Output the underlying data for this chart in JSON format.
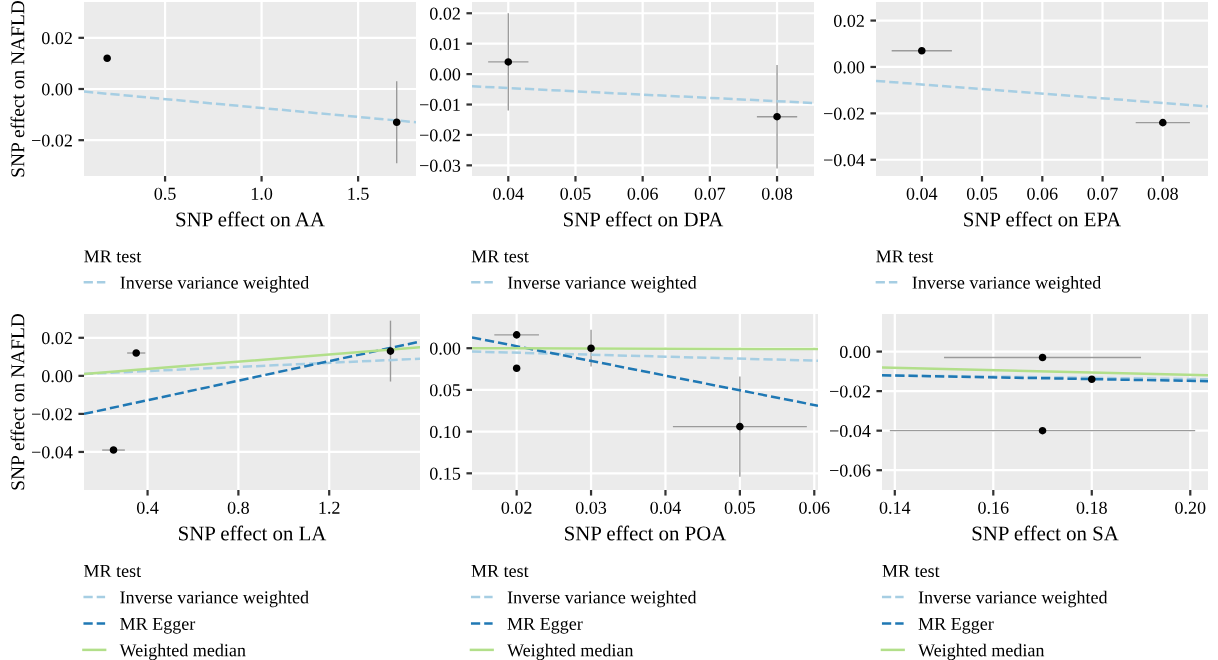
{
  "chart_data": [
    {
      "type": "scatter",
      "xlabel": "SNP effect on AA",
      "ylabel": "SNP effect on NAFLD",
      "xlim": [
        0.08,
        1.8
      ],
      "ylim": [
        -0.034,
        0.034
      ],
      "xticks": [
        0.5,
        {
          "value": 1.0,
          "label": "1.0"
        },
        1.5
      ],
      "yticks": [
        0.02,
        {
          "value": 0.0,
          "label": "0.00"
        },
        -0.02
      ],
      "grid": true,
      "legend": "bottom",
      "legend_title": "MR test",
      "series": [
        {
          "type": "scatter",
          "color": "#000000",
          "x": [
            0.2,
            1.7
          ],
          "values": [
            0.012,
            -0.013
          ],
          "errors": [
            null,
            0.016
          ]
        },
        {
          "type": "line",
          "name": "Inverse variance weighted",
          "color": "#a6cee3",
          "line_style": "dashed",
          "x": [
            0.08,
            1.8
          ],
          "values": [
            -0.001,
            -0.013
          ]
        }
      ]
    },
    {
      "type": "scatter",
      "xlabel": "SNP effect on DPA",
      "xlim": [
        0.0346,
        0.0855
      ],
      "ylim": [
        -0.0335,
        0.0237
      ],
      "xticks": [
        0.04,
        0.05,
        0.06,
        0.07,
        0.08
      ],
      "yticks": [
        0.02,
        0.01,
        {
          "value": 0.0,
          "label": "0.00"
        },
        -0.01,
        -0.02,
        -0.03
      ],
      "grid": true,
      "legend": "bottom",
      "legend_title": "MR test",
      "series": [
        {
          "type": "scatter",
          "color": "#000000",
          "x": [
            0.04,
            0.08
          ],
          "values": [
            0.004,
            -0.014
          ],
          "errors": [
            0.016,
            0.017
          ],
          "xerrors": [
            0.003,
            0.003
          ]
        },
        {
          "type": "line",
          "name": "Inverse variance weighted",
          "color": "#a6cee3",
          "line_style": "dashed",
          "x": [
            0.0346,
            0.0855
          ],
          "values": [
            -0.004,
            -0.0095
          ]
        }
      ]
    },
    {
      "type": "scatter",
      "xlabel": "SNP effect on EPA",
      "xlim": [
        0.0324,
        0.0875
      ],
      "ylim": [
        -0.047,
        0.028
      ],
      "xticks": [
        0.04,
        0.05,
        0.06,
        0.07,
        0.08
      ],
      "yticks": [
        0.02,
        {
          "value": 0.0,
          "label": "0.00"
        },
        -0.02,
        -0.04
      ],
      "grid": true,
      "legend": "bottom",
      "legend_title": "MR test",
      "series": [
        {
          "type": "scatter",
          "color": "#000000",
          "x": [
            0.04,
            0.08
          ],
          "values": [
            0.007,
            -0.024
          ],
          "xerrors": [
            0.005,
            0.0045
          ]
        },
        {
          "type": "line",
          "name": "Inverse variance weighted",
          "color": "#a6cee3",
          "line_style": "dashed",
          "x": [
            0.0324,
            0.0875
          ],
          "values": [
            -0.006,
            -0.017
          ]
        }
      ]
    },
    {
      "type": "scatter",
      "xlabel": "SNP effect on LA",
      "ylabel": "SNP effect on NAFLD",
      "xlim": [
        0.12,
        1.6
      ],
      "ylim": [
        -0.06,
        0.0325
      ],
      "xticks": [
        0.4,
        0.8,
        1.2
      ],
      "yticks": [
        0.02,
        {
          "value": 0.0,
          "label": "0.00"
        },
        -0.02,
        -0.04
      ],
      "grid": true,
      "legend": "bottom",
      "legend_title": "MR test",
      "series": [
        {
          "type": "scatter",
          "color": "#000000",
          "x": [
            0.35,
            0.25,
            1.47
          ],
          "values": [
            0.012,
            -0.039,
            0.013
          ],
          "errors": [
            null,
            null,
            0.016
          ],
          "xerrors": [
            0.04,
            0.05,
            null
          ]
        },
        {
          "type": "line",
          "name": "Inverse variance weighted",
          "color": "#a6cee3",
          "line_style": "dashed",
          "x": [
            0.12,
            1.6
          ],
          "values": [
            0.001,
            0.009
          ]
        },
        {
          "type": "line",
          "name": "MR Egger",
          "color": "#1f78b4",
          "line_style": "dashed",
          "x": [
            0.12,
            1.6
          ],
          "values": [
            -0.02,
            0.018
          ]
        },
        {
          "type": "line",
          "name": "Weighted median",
          "color": "#b2df8a",
          "line_style": "solid",
          "x": [
            0.12,
            1.6
          ],
          "values": [
            0.001,
            0.015
          ]
        }
      ]
    },
    {
      "type": "scatter",
      "xlabel": "SNP effect on POA",
      "xlim": [
        0.014,
        0.0605
      ],
      "ylim": [
        -0.17,
        0.041
      ],
      "xticks": [
        0.02,
        0.03,
        0.04,
        0.05,
        0.06
      ],
      "yticks": [
        {
          "value": 0.0,
          "label": "0.00"
        },
        {
          "value": -0.05,
          "label": "0.05"
        },
        {
          "value": -0.1,
          "label": "0.10"
        },
        {
          "value": -0.15,
          "label": "0.15"
        }
      ],
      "grid": true,
      "legend": "bottom",
      "legend_title": "MR test",
      "series": [
        {
          "type": "scatter",
          "color": "#000000",
          "x": [
            0.02,
            0.02,
            0.03,
            0.05
          ],
          "values": [
            0.016,
            -0.024,
            0.0,
            -0.094
          ],
          "errors": [
            null,
            null,
            0.022,
            0.06
          ],
          "xerrors": [
            0.003,
            null,
            null,
            0.009
          ]
        },
        {
          "type": "line",
          "name": "Inverse variance weighted",
          "color": "#a6cee3",
          "line_style": "dashed",
          "x": [
            0.014,
            0.0605
          ],
          "values": [
            -0.004,
            -0.015
          ]
        },
        {
          "type": "line",
          "name": "MR Egger",
          "color": "#1f78b4",
          "line_style": "dashed",
          "x": [
            0.014,
            0.0605
          ],
          "values": [
            0.013,
            -0.069
          ]
        },
        {
          "type": "line",
          "name": "Weighted median",
          "color": "#b2df8a",
          "line_style": "solid",
          "x": [
            0.014,
            0.0605
          ],
          "values": [
            0.0,
            -0.001
          ]
        }
      ]
    },
    {
      "type": "scatter",
      "xlabel": "SNP effect on SA",
      "xlim": [
        0.1374,
        0.2036
      ],
      "ylim": [
        -0.07,
        0.019
      ],
      "xticks": [
        0.14,
        0.16,
        0.18,
        {
          "value": 0.2,
          "label": "0.20"
        }
      ],
      "yticks": [
        {
          "value": 0.0,
          "label": "0.00"
        },
        -0.02,
        -0.04,
        -0.06
      ],
      "grid": true,
      "legend": "bottom",
      "legend_title": "MR test",
      "series": [
        {
          "type": "scatter",
          "color": "#000000",
          "x": [
            0.17,
            0.18,
            0.17
          ],
          "values": [
            -0.003,
            -0.014,
            -0.04
          ],
          "xerrors": [
            0.02,
            null,
            0.031
          ]
        },
        {
          "type": "line",
          "name": "Inverse variance weighted",
          "color": "#a6cee3",
          "line_style": "dashed",
          "x": [
            0.1374,
            0.2036
          ],
          "values": [
            -0.012,
            -0.014
          ]
        },
        {
          "type": "line",
          "name": "MR Egger",
          "color": "#1f78b4",
          "line_style": "dashed",
          "x": [
            0.1374,
            0.2036
          ],
          "values": [
            -0.012,
            -0.015
          ]
        },
        {
          "type": "line",
          "name": "Weighted median",
          "color": "#b2df8a",
          "line_style": "solid",
          "x": [
            0.1374,
            0.2036
          ],
          "values": [
            -0.008,
            -0.012
          ]
        }
      ]
    }
  ]
}
